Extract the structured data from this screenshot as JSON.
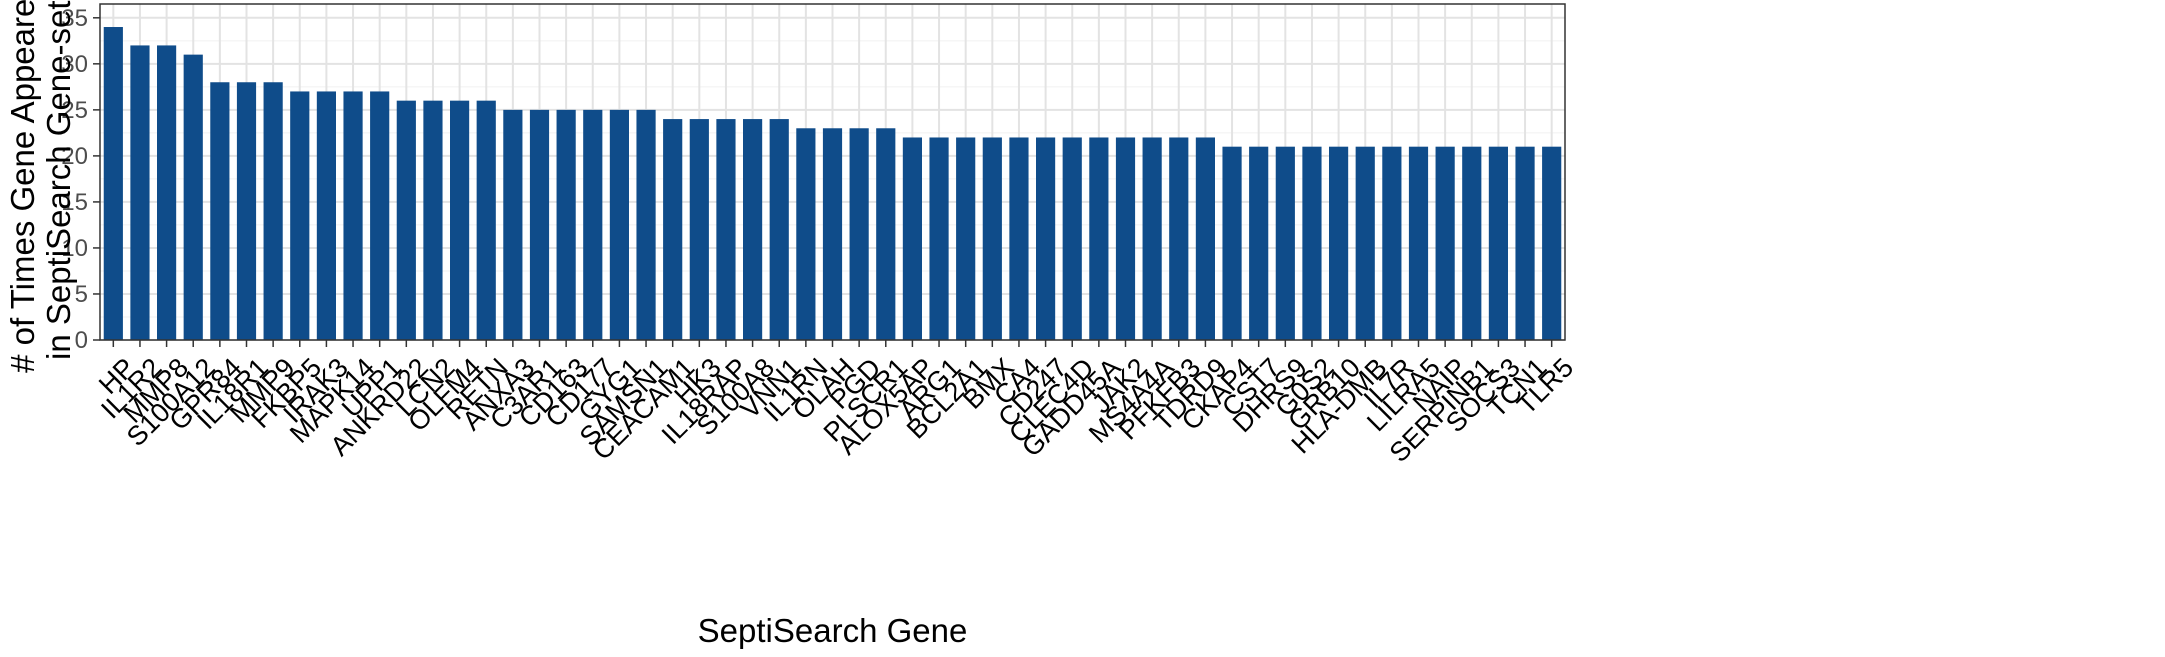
{
  "chart_data": {
    "type": "bar",
    "xlabel": "SeptiSearch Gene",
    "ylabel": [
      "# of Times Gene Appeared",
      "in SeptiSearch Gene-sets"
    ],
    "ylim": [
      0,
      36.5
    ],
    "yticks": [
      0,
      5,
      10,
      15,
      20,
      25,
      30,
      35
    ],
    "grid": true,
    "bar_color": "#0f4c8a",
    "categories": [
      "HP",
      "IL1R2",
      "MMP8",
      "S100A12",
      "GPR84",
      "IL18R1",
      "MMP9",
      "FKBP5",
      "IRAK3",
      "MAPK14",
      "UPP1",
      "ANKRD22",
      "LCN2",
      "OLFM4",
      "RETN",
      "ANXA3",
      "C3AR1",
      "CD163",
      "CD177",
      "GYG1",
      "SAMSN1",
      "CEACAM1",
      "HK3",
      "IL18RAP",
      "S100A8",
      "VNN1",
      "IL1RN",
      "OLAH",
      "PGD",
      "PLSCR1",
      "ALOX5AP",
      "ARG1",
      "BCL2A1",
      "BMX",
      "CA4",
      "CD247",
      "CLEC4D",
      "GADD45A",
      "JAK2",
      "MS4A4A",
      "PFKFB3",
      "TDRD9",
      "CKAP4",
      "CST7",
      "DHRS9",
      "G0S2",
      "GRB10",
      "HLA-DMB",
      "IL7R",
      "LILRA5",
      "NAIP",
      "SERPINB1",
      "SOCS3",
      "TCN1",
      "TLR5"
    ],
    "values": [
      34,
      32,
      32,
      31,
      28,
      28,
      28,
      27,
      27,
      27,
      27,
      26,
      26,
      26,
      26,
      25,
      25,
      25,
      25,
      25,
      25,
      24,
      24,
      24,
      24,
      24,
      23,
      23,
      23,
      23,
      22,
      22,
      22,
      22,
      22,
      22,
      22,
      22,
      22,
      22,
      22,
      22,
      21,
      21,
      21,
      21,
      21,
      21,
      21,
      21,
      21,
      21,
      21,
      21,
      21
    ]
  }
}
